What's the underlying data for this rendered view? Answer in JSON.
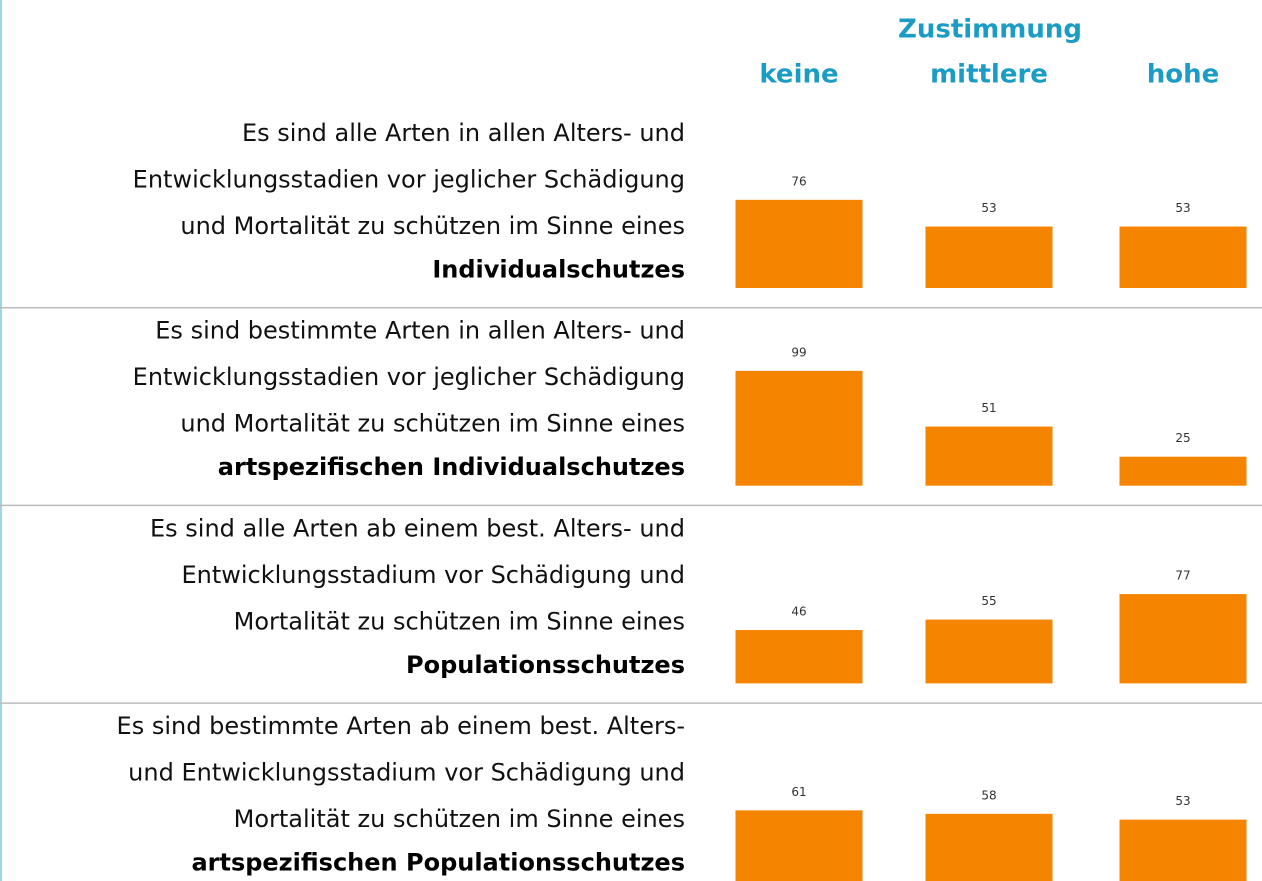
{
  "chart_data": {
    "type": "bar",
    "title": "Zustimmung",
    "categories": [
      "keine",
      "mittlere",
      "hohe"
    ],
    "color": "#f58400",
    "panels": [
      {
        "lines": [
          "Es sind alle Arten in allen Alters- und",
          "Entwicklungsstadien vor jeglicher Schädigung",
          "und Mortalität zu schützen im Sinne eines"
        ],
        "emphasis": "Individualschutzes",
        "values": [
          76,
          53,
          53
        ]
      },
      {
        "lines": [
          "Es sind bestimmte Arten in allen Alters- und",
          "Entwicklungsstadien vor jeglicher Schädigung",
          "und Mortalität zu schützen im Sinne eines"
        ],
        "emphasis": "artspezifischen Individualschutzes",
        "values": [
          99,
          51,
          25
        ]
      },
      {
        "lines": [
          "Es sind alle Arten ab einem best. Alters- und",
          "Entwicklungsstadium vor Schädigung und",
          "Mortalität zu schützen im Sinne eines"
        ],
        "emphasis": "Populationsschutzes",
        "values": [
          46,
          55,
          77
        ]
      },
      {
        "lines": [
          "Es sind bestimmte Arten ab einem best. Alters-",
          "und Entwicklungsstadium vor Schädigung und",
          "Mortalität zu schützen im Sinne eines"
        ],
        "emphasis": "artspezifischen Populationsschutzes",
        "values": [
          61,
          58,
          53
        ]
      }
    ]
  }
}
